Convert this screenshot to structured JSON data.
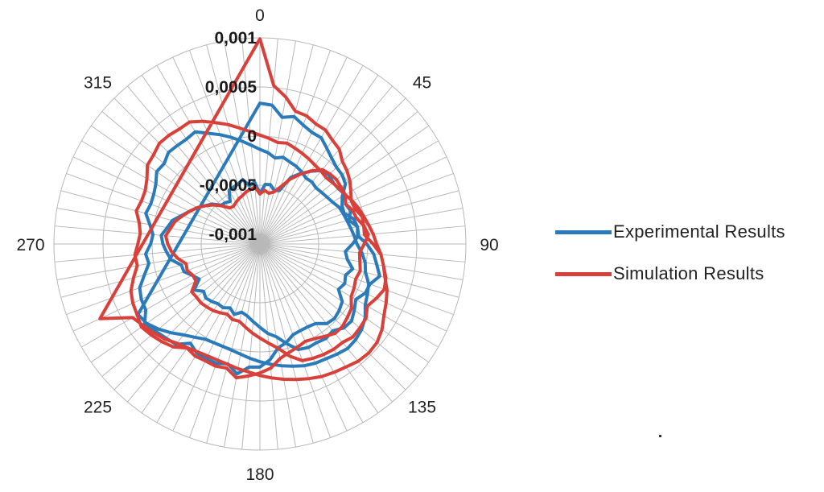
{
  "chart_data": {
    "type": "radar",
    "title": "",
    "angle_labels": [
      "0",
      "45",
      "90",
      "135",
      "180",
      "225",
      "270",
      "315"
    ],
    "radial_tick_labels": [
      "0,001",
      "0,0005",
      "0",
      "-0,0005",
      "-0,001"
    ],
    "radial_range": [
      -0.001,
      0.001
    ],
    "angle_step_deg": 5,
    "grid": true,
    "legend_position": "right",
    "series": [
      {
        "name": "Experimental Results",
        "color": "#2b7bba",
        "values": [
          0.000335,
          0.00032,
          0.00021,
          0.000245,
          0.00019,
          0.000155,
          0.00015,
          9e-05,
          4e-05,
          5e-06,
          -5e-06,
          -3.5e-05,
          -0.00013,
          -0.000175,
          -0.000185,
          -0.00011,
          -9e-05,
          -0.0001,
          -1e-05,
          6.5e-05,
          0.00011,
          0.000165,
          9.5e-05,
          8.5e-05,
          3e-05,
          7.5e-05,
          0.00012,
          0.00011,
          5.5e-05,
          7.5e-05,
          6e-05,
          6.5e-05,
          4.5e-05,
          -5e-05,
          -0.00014,
          -0.000185,
          -0.00025,
          -0.000305,
          -0.000355,
          -0.00038,
          -0.000335,
          -0.00038,
          -0.00035,
          -0.000355,
          -0.000335,
          -0.00032,
          -0.00035,
          -0.00028,
          -0.000385,
          -0.00034,
          -0.000275,
          -0.00027,
          -0.00018,
          -0.000145,
          -0.00011,
          -9e-05,
          -0.00014,
          -0.000175,
          -0.00025,
          -0.00031,
          -0.00036,
          -0.00042,
          -0.000465,
          -0.00054,
          -0.00055,
          -0.00057,
          -0.00047,
          -0.00046,
          -0.00045,
          -0.00042,
          -0.000495,
          -0.000465,
          -0.000585,
          -0.00049,
          -0.000485,
          -0.000535,
          -0.00052,
          -0.00035,
          -0.00027,
          -0.000195,
          -0.00012,
          -0.000105,
          -0.000125,
          -0.00012,
          -9.5e-05,
          -0.000135,
          -0.000115,
          -0.00016,
          -9e-05,
          -9e-05,
          -0.000155,
          -0.000225,
          -0.000195,
          -0.00012,
          -0.00017,
          -0.000145,
          -0.000175,
          -7.5e-05,
          -4.5e-05,
          -2.5e-05,
          -4e-05,
          -0.00011,
          -0.000125,
          -0.000125,
          -0.000115,
          -6e-05,
          -2.5e-05,
          8.5e-05,
          0.000155,
          0.00016,
          0.000245,
          0.000165,
          0.000195,
          0.00019,
          0.000185,
          0.000135,
          0.000235,
          0.000255,
          0.000285,
          0.000335,
          0.000245,
          0.000235,
          0.000205,
          0.00012,
          5e-05,
          7e-05,
          1.5e-05,
          -5e-06,
          4e-05,
          0.000105,
          8.5e-05,
          9.5e-05,
          0.000125,
          0.000185,
          0.000175,
          0.00022,
          0.00021,
          0.000205,
          0.00022,
          0.000145,
          8.5e-05,
          2.5e-05,
          -3.5e-05,
          -9e-05,
          -0.000135,
          -0.000165,
          -0.00021,
          -0.000185,
          -0.00021,
          -0.000225,
          -0.00025,
          -0.00028,
          -0.000275,
          -0.00029,
          -0.00028,
          -0.000265,
          -0.000245,
          -0.00021,
          -0.000195,
          -0.00018,
          -0.00016,
          -0.000135,
          -0.00011,
          -5.5e-05,
          -1e-05,
          1.5e-05,
          8e-05,
          0.00011,
          0.00014,
          0.00021,
          0.000255,
          0.00028,
          0.00029,
          0.00027,
          0.00025,
          0.00024,
          0.00022,
          0.00019,
          0.00016,
          0.00013,
          0.0001,
          7e-05,
          4e-05,
          2e-05,
          1e-05,
          1e-05,
          2e-05,
          6e-05,
          0.00011,
          0.00018,
          0.00025,
          0.00031,
          0.000335
        ]
      },
      {
        "name": "Simulation Results",
        "color": "#d9403a",
        "values": [
          0.00099,
          0.00052,
          0.00042,
          0.0003,
          0.00029,
          0.00025,
          0.00024,
          0.00019,
          0.00016,
          9e-05,
          6e-05,
          2e-05,
          -3e-05,
          -7e-05,
          -6.5e-05,
          -2e-05,
          -2.5e-05,
          -3e-05,
          5.5e-05,
          0.00014,
          0.00018,
          0.00023,
          0.00025,
          0.00021,
          0.000165,
          0.00022,
          0.00023,
          0.00024,
          0.00021,
          0.00021,
          0.0002,
          0.000185,
          0.000165,
          8.5e-05,
          -2e-05,
          -8.5e-05,
          -0.00014,
          -0.00019,
          -0.00024,
          -0.000285,
          -0.00028,
          -0.00031,
          -0.00029,
          -0.00027,
          -0.00026,
          -0.00025,
          -0.000255,
          -0.00025,
          -0.000345,
          -0.000345,
          -0.00031,
          -0.00032,
          -0.00025,
          -0.000195,
          -0.00016,
          -0.000135,
          -0.000175,
          -0.000205,
          -0.00026,
          -0.00031,
          -0.00036,
          -0.00042,
          -0.00048,
          -0.00055,
          -0.00062,
          -0.00063,
          -0.00061,
          -0.00059,
          -0.000575,
          -0.00055,
          -0.000535,
          -0.000515,
          -0.00059,
          -0.00055,
          -0.000575,
          -0.00055,
          -0.00048,
          -0.00037,
          -0.00028,
          -0.00019,
          -0.00011,
          -9e-05,
          -8e-05,
          -9e-05,
          -9.5e-05,
          -0.000135,
          -9.5e-05,
          -8e-05,
          -2.5e-05,
          1e-05,
          -3.5e-05,
          -8e-05,
          -6.5e-05,
          -4e-05,
          -6e-05,
          -4e-05,
          -2.5e-05,
          4e-05,
          6.5e-05,
          9e-05,
          9e-05,
          5e-05,
          1.5e-05,
          -5e-06,
          2e-05,
          4.5e-05,
          8.5e-05,
          0.00017,
          0.000215,
          0.00025,
          0.000285,
          0.00021,
          0.000225,
          0.000215,
          0.00022,
          0.000195,
          0.00027,
          0.00031,
          0.000345,
          0.000375,
          0.000345,
          0.00033,
          0.0003,
          0.000235,
          0.00017,
          0.00018,
          0.000145,
          0.000125,
          0.00015,
          0.000205,
          0.000185,
          0.00019,
          0.00023,
          0.0003,
          0.000315,
          0.00035,
          0.000345,
          0.00033,
          0.000335,
          0.00028,
          0.000215,
          0.00016,
          0.0001,
          5e-05,
          1e-05,
          -2e-05,
          -5e-05,
          -3.5e-05,
          -6e-05,
          -8e-05,
          -0.0001,
          -0.00012,
          -0.00013,
          -0.000145,
          -0.00013,
          -0.000115,
          -9.5e-05,
          -6e-05,
          -3e-05,
          -5e-06,
          2.5e-05,
          6e-05,
          9e-05,
          0.00014,
          0.00018,
          0.00022,
          0.00028,
          0.00032,
          0.00036,
          0.00042,
          0.00046,
          0.00047,
          0.00046,
          0.00043,
          0.00041,
          0.00039,
          0.00036,
          0.00033,
          0.0003,
          0.00027,
          0.00024,
          0.00021,
          0.00019,
          0.00017,
          0.00016,
          0.00016,
          0.00017,
          0.00019,
          0.00022,
          0.00027,
          0.00031,
          0.00035,
          0.0004,
          0.0007
        ]
      }
    ]
  }
}
